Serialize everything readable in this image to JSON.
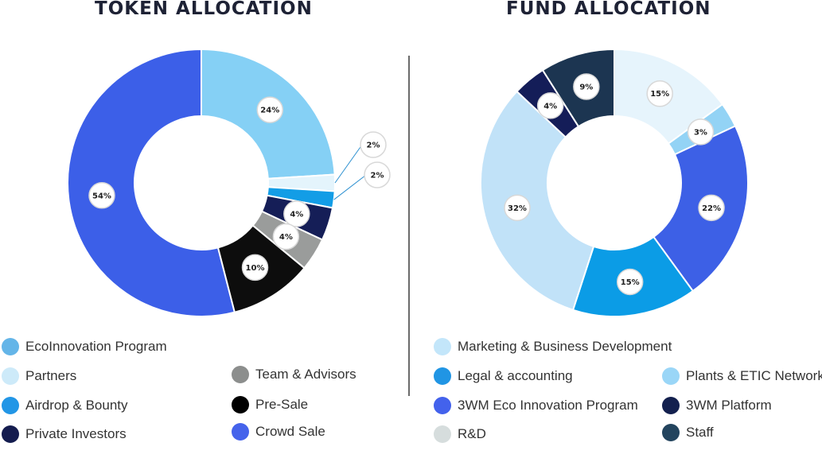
{
  "chart_data": [
    {
      "type": "pie",
      "title": "TOKEN ALLOCATION",
      "labels": [
        "EcoInnovation Program",
        "Partners",
        "Airdrop & Bounty",
        "Private Investors",
        "Team & Advisors",
        "Pre-Sale",
        "Crowd Sale"
      ],
      "values": [
        24,
        2,
        2,
        4,
        4,
        10,
        54
      ],
      "value_labels": [
        "24%",
        "2%",
        "2%",
        "4%",
        "4%",
        "10%",
        "54%"
      ],
      "colors": [
        "#85d0f5",
        "#e4f4fc",
        "#139de6",
        "#151e57",
        "#9a9c9b",
        "#0d0d0d",
        "#3c5fe8"
      ],
      "legend_position": "bottom"
    },
    {
      "type": "pie",
      "title": "FUND ALLOCATION",
      "labels": [
        "Marketing & Business Development",
        "Plants & ETIC Network",
        "3WM Eco Innovation Program",
        "Legal & accounting",
        "R&D",
        "3WM Platform",
        "Staff"
      ],
      "values": [
        15,
        3,
        22,
        15,
        32,
        4,
        9
      ],
      "value_labels": [
        "15%",
        "3%",
        "22%",
        "15%",
        "32%",
        "4%",
        "9%"
      ],
      "colors": [
        "#e6f4fc",
        "#93d3f5",
        "#3d60e6",
        "#0b9ce6",
        "#c1e2f8",
        "#141d58",
        "#1c3551"
      ],
      "legend_position": "bottom"
    }
  ],
  "legend_left": [
    {
      "label": "EcoInnovation Program",
      "color": "#64b5e8"
    },
    {
      "label": "Partners",
      "color": "#cdeaf9"
    },
    {
      "label": "Airdrop & Bounty",
      "color": "#2296e6"
    },
    {
      "label": "Private Investors",
      "color": "#141c4f"
    },
    {
      "label": "Team & Advisors",
      "color": "#8c8e8d"
    },
    {
      "label": "Pre-Sale",
      "color": "#000000"
    },
    {
      "label": "Crowd Sale",
      "color": "#4563eb"
    }
  ],
  "legend_right": [
    {
      "label": "Marketing & Business Development",
      "color": "#c3e6fa"
    },
    {
      "label": "Legal & accounting",
      "color": "#2095e4"
    },
    {
      "label": "3WM Eco Innovation Program",
      "color": "#4362ec"
    },
    {
      "label": "R&D",
      "color": "#d6dddd"
    },
    {
      "label": "Plants & ETIC Network",
      "color": "#9ad6f7"
    },
    {
      "label": "3WM Platform",
      "color": "#13204e"
    },
    {
      "label": "Staff",
      "color": "#23445e"
    }
  ]
}
